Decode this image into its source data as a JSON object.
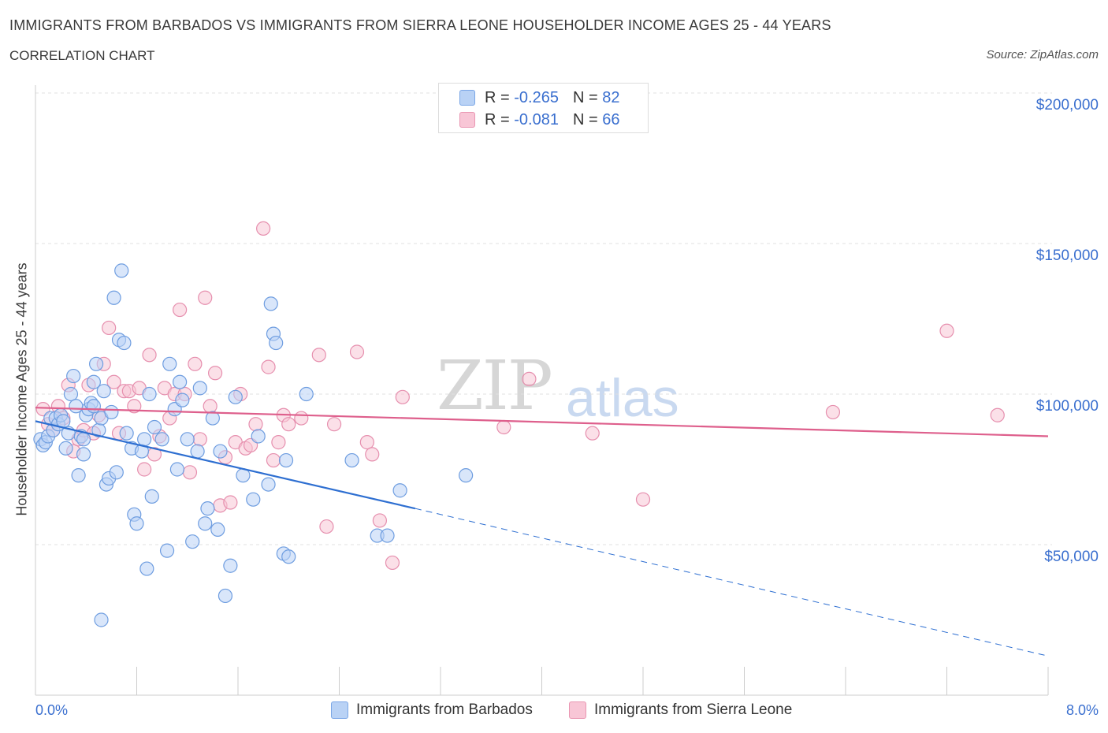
{
  "title": "IMMIGRANTS FROM BARBADOS VS IMMIGRANTS FROM SIERRA LEONE HOUSEHOLDER INCOME AGES 25 - 44 YEARS",
  "subtitle": "CORRELATION CHART",
  "source": "Source: ZipAtlas.com",
  "watermark": {
    "zip": "ZIP",
    "atlas": "atlas"
  },
  "legend": {
    "r_label": "R =",
    "n_label": "N =",
    "series1": {
      "r": "-0.265",
      "n": "82"
    },
    "series2": {
      "r": "-0.081",
      "n": "66"
    }
  },
  "colors": {
    "barbados_fill": "#b9d2f5",
    "barbados_stroke": "#6e9de0",
    "barbados_line": "#2e6fd1",
    "sierra_fill": "#f8c6d6",
    "sierra_stroke": "#e68fae",
    "sierra_line": "#de5f8c",
    "grid": "#e0e0e0",
    "tick_label": "#3a6fcf"
  },
  "chart_data": {
    "type": "scatter",
    "xlabel": "",
    "ylabel": "Householder Income Ages 25 - 44 years",
    "xlim": [
      0,
      8
    ],
    "ylim": [
      0,
      200000
    ],
    "x_ticks_labels": [
      "0.0%",
      "8.0%"
    ],
    "y_ticks": [
      {
        "value": 50000,
        "label": "$50,000"
      },
      {
        "value": 100000,
        "label": "$100,000"
      },
      {
        "value": 150000,
        "label": "$150,000"
      },
      {
        "value": 200000,
        "label": "$200,000"
      }
    ],
    "grid": true,
    "series": [
      {
        "name": "Immigrants from Barbados",
        "trend": {
          "x0": 0.0,
          "y0": 91000,
          "x1": 3.0,
          "y1": 62000,
          "dash_x1": 8.0,
          "dash_y1": 13000
        },
        "points": [
          [
            0.04,
            85000
          ],
          [
            0.06,
            83000
          ],
          [
            0.08,
            84000
          ],
          [
            0.1,
            86000
          ],
          [
            0.12,
            92000
          ],
          [
            0.14,
            88000
          ],
          [
            0.16,
            92000
          ],
          [
            0.18,
            90000
          ],
          [
            0.2,
            93000
          ],
          [
            0.22,
            91000
          ],
          [
            0.24,
            82000
          ],
          [
            0.26,
            87000
          ],
          [
            0.28,
            100000
          ],
          [
            0.3,
            106000
          ],
          [
            0.32,
            96000
          ],
          [
            0.34,
            73000
          ],
          [
            0.36,
            86000
          ],
          [
            0.38,
            80000
          ],
          [
            0.4,
            93000
          ],
          [
            0.42,
            95000
          ],
          [
            0.44,
            97000
          ],
          [
            0.46,
            104000
          ],
          [
            0.48,
            110000
          ],
          [
            0.5,
            88000
          ],
          [
            0.52,
            92000
          ],
          [
            0.54,
            101000
          ],
          [
            0.56,
            70000
          ],
          [
            0.58,
            72000
          ],
          [
            0.6,
            94000
          ],
          [
            0.62,
            132000
          ],
          [
            0.64,
            74000
          ],
          [
            0.66,
            118000
          ],
          [
            0.68,
            141000
          ],
          [
            0.7,
            117000
          ],
          [
            0.72,
            87000
          ],
          [
            0.76,
            82000
          ],
          [
            0.78,
            60000
          ],
          [
            0.8,
            57000
          ],
          [
            0.84,
            81000
          ],
          [
            0.88,
            42000
          ],
          [
            0.9,
            100000
          ],
          [
            0.92,
            66000
          ],
          [
            0.94,
            89000
          ],
          [
            1.0,
            85000
          ],
          [
            1.04,
            48000
          ],
          [
            1.06,
            110000
          ],
          [
            1.1,
            95000
          ],
          [
            1.12,
            75000
          ],
          [
            1.14,
            104000
          ],
          [
            1.16,
            98000
          ],
          [
            1.2,
            85000
          ],
          [
            1.24,
            51000
          ],
          [
            1.28,
            81000
          ],
          [
            1.3,
            102000
          ],
          [
            1.34,
            57000
          ],
          [
            1.36,
            62000
          ],
          [
            1.4,
            92000
          ],
          [
            1.44,
            55000
          ],
          [
            1.46,
            81000
          ],
          [
            1.5,
            33000
          ],
          [
            1.54,
            43000
          ],
          [
            1.58,
            99000
          ],
          [
            1.64,
            73000
          ],
          [
            1.72,
            65000
          ],
          [
            1.76,
            86000
          ],
          [
            1.84,
            70000
          ],
          [
            1.86,
            130000
          ],
          [
            1.88,
            120000
          ],
          [
            1.9,
            117000
          ],
          [
            1.96,
            47000
          ],
          [
            1.98,
            78000
          ],
          [
            2.0,
            46000
          ],
          [
            2.14,
            100000
          ],
          [
            2.5,
            78000
          ],
          [
            2.7,
            53000
          ],
          [
            2.78,
            53000
          ],
          [
            2.88,
            68000
          ],
          [
            3.4,
            73000
          ],
          [
            0.52,
            25000
          ],
          [
            0.46,
            96000
          ],
          [
            0.38,
            85000
          ],
          [
            0.86,
            85000
          ]
        ]
      },
      {
        "name": "Immigrants from Sierra Leone",
        "trend": {
          "x0": 0.0,
          "y0": 95500,
          "x1": 8.0,
          "y1": 86000
        },
        "points": [
          [
            0.06,
            95000
          ],
          [
            0.1,
            90000
          ],
          [
            0.14,
            88000
          ],
          [
            0.18,
            96000
          ],
          [
            0.22,
            92000
          ],
          [
            0.26,
            103000
          ],
          [
            0.3,
            81000
          ],
          [
            0.34,
            85000
          ],
          [
            0.38,
            88000
          ],
          [
            0.42,
            103000
          ],
          [
            0.46,
            87000
          ],
          [
            0.5,
            93000
          ],
          [
            0.54,
            110000
          ],
          [
            0.58,
            122000
          ],
          [
            0.62,
            104000
          ],
          [
            0.66,
            87000
          ],
          [
            0.7,
            101000
          ],
          [
            0.74,
            101000
          ],
          [
            0.78,
            96000
          ],
          [
            0.82,
            102000
          ],
          [
            0.86,
            75000
          ],
          [
            0.9,
            113000
          ],
          [
            0.94,
            80000
          ],
          [
            0.98,
            86000
          ],
          [
            1.02,
            102000
          ],
          [
            1.06,
            92000
          ],
          [
            1.1,
            100000
          ],
          [
            1.14,
            128000
          ],
          [
            1.18,
            100000
          ],
          [
            1.22,
            74000
          ],
          [
            1.26,
            110000
          ],
          [
            1.3,
            85000
          ],
          [
            1.34,
            132000
          ],
          [
            1.38,
            96000
          ],
          [
            1.42,
            107000
          ],
          [
            1.46,
            63000
          ],
          [
            1.5,
            79000
          ],
          [
            1.54,
            64000
          ],
          [
            1.58,
            84000
          ],
          [
            1.62,
            100000
          ],
          [
            1.66,
            82000
          ],
          [
            1.7,
            83000
          ],
          [
            1.74,
            90000
          ],
          [
            1.8,
            155000
          ],
          [
            1.84,
            109000
          ],
          [
            1.88,
            78000
          ],
          [
            1.92,
            84000
          ],
          [
            1.96,
            93000
          ],
          [
            2.0,
            90000
          ],
          [
            2.1,
            92000
          ],
          [
            2.24,
            113000
          ],
          [
            2.3,
            56000
          ],
          [
            2.36,
            90000
          ],
          [
            2.54,
            114000
          ],
          [
            2.62,
            84000
          ],
          [
            2.66,
            80000
          ],
          [
            2.72,
            58000
          ],
          [
            2.82,
            44000
          ],
          [
            2.9,
            99000
          ],
          [
            3.7,
            89000
          ],
          [
            3.9,
            105000
          ],
          [
            4.4,
            87000
          ],
          [
            4.8,
            65000
          ],
          [
            6.3,
            94000
          ],
          [
            7.2,
            121000
          ],
          [
            7.6,
            93000
          ]
        ]
      }
    ]
  }
}
